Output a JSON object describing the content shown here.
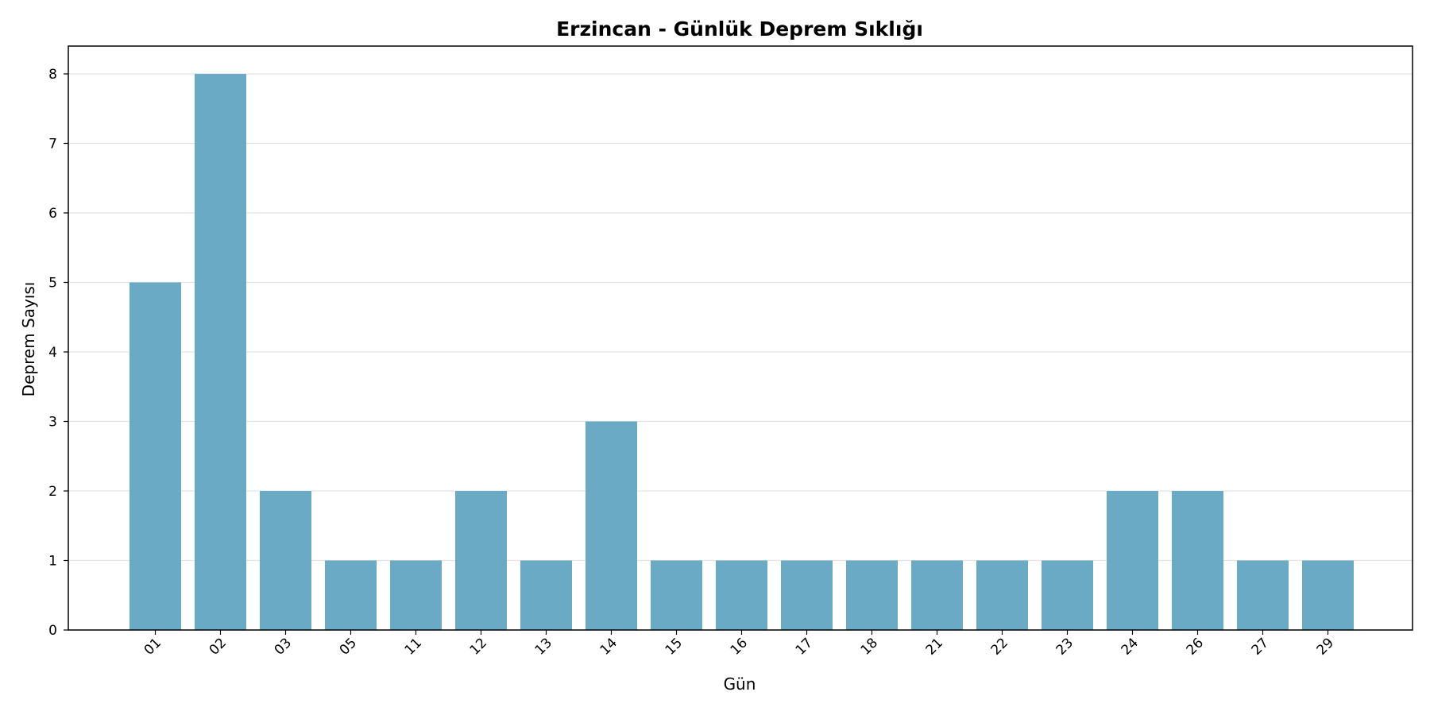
{
  "chart_data": {
    "type": "bar",
    "title": "Erzincan - Günlük Deprem Sıklığı",
    "xlabel": "Gün",
    "ylabel": "Deprem Sayısı",
    "categories": [
      "01",
      "02",
      "03",
      "05",
      "11",
      "12",
      "13",
      "14",
      "15",
      "16",
      "17",
      "18",
      "21",
      "22",
      "23",
      "24",
      "26",
      "27",
      "29"
    ],
    "values": [
      5,
      8,
      2,
      1,
      1,
      2,
      1,
      3,
      1,
      1,
      1,
      1,
      1,
      1,
      1,
      2,
      2,
      1,
      1
    ],
    "ylim": [
      0,
      8.4
    ],
    "yticks": [
      0,
      1,
      2,
      3,
      4,
      5,
      6,
      7,
      8
    ],
    "grid": "horizontal",
    "legend": "none",
    "colors": {
      "bar": "#6baac4",
      "grid": "#e3e3e3",
      "axis": "#000000"
    }
  }
}
